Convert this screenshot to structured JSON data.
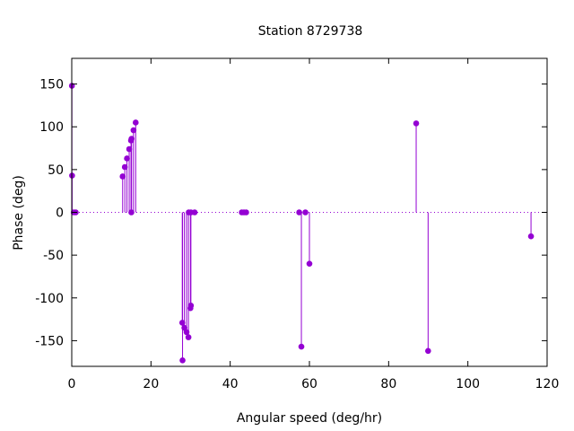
{
  "chart_data": {
    "type": "scatter",
    "title": "Station 8729738",
    "xlabel": "Angular speed (deg/hr)",
    "ylabel": "Phase (deg)",
    "xlim": [
      0,
      120
    ],
    "ylim": [
      -180,
      180
    ],
    "xticks": [
      0,
      20,
      40,
      60,
      80,
      100,
      120
    ],
    "yticks": [
      -150,
      -100,
      -50,
      0,
      50,
      100,
      150
    ],
    "grid": false,
    "zero_line": "dotted",
    "marker_style": "impulse-with-dot",
    "series_color": "#9400D3",
    "points": [
      {
        "x": 0.04,
        "y": 148
      },
      {
        "x": 0.08,
        "y": 43
      },
      {
        "x": 0.5,
        "y": 0
      },
      {
        "x": 1.0,
        "y": 0
      },
      {
        "x": 12.85,
        "y": 42
      },
      {
        "x": 13.4,
        "y": 53
      },
      {
        "x": 13.94,
        "y": 63
      },
      {
        "x": 14.5,
        "y": 74
      },
      {
        "x": 14.96,
        "y": 84
      },
      {
        "x": 15.04,
        "y": 0
      },
      {
        "x": 15.1,
        "y": 86
      },
      {
        "x": 15.59,
        "y": 96
      },
      {
        "x": 16.14,
        "y": 105
      },
      {
        "x": 27.9,
        "y": -129
      },
      {
        "x": 27.97,
        "y": -173
      },
      {
        "x": 28.44,
        "y": -135
      },
      {
        "x": 28.98,
        "y": -140
      },
      {
        "x": 29.46,
        "y": -146
      },
      {
        "x": 29.53,
        "y": 0
      },
      {
        "x": 29.96,
        "y": -112
      },
      {
        "x": 30.08,
        "y": 0
      },
      {
        "x": 30.08,
        "y": -109
      },
      {
        "x": 31.02,
        "y": 0
      },
      {
        "x": 42.93,
        "y": 0
      },
      {
        "x": 43.48,
        "y": 0
      },
      {
        "x": 44.03,
        "y": 0
      },
      {
        "x": 57.42,
        "y": 0
      },
      {
        "x": 57.97,
        "y": -157
      },
      {
        "x": 58.98,
        "y": 0
      },
      {
        "x": 60.0,
        "y": -60
      },
      {
        "x": 86.95,
        "y": 104
      },
      {
        "x": 89.96,
        "y": -162
      },
      {
        "x": 115.94,
        "y": -28
      }
    ]
  }
}
